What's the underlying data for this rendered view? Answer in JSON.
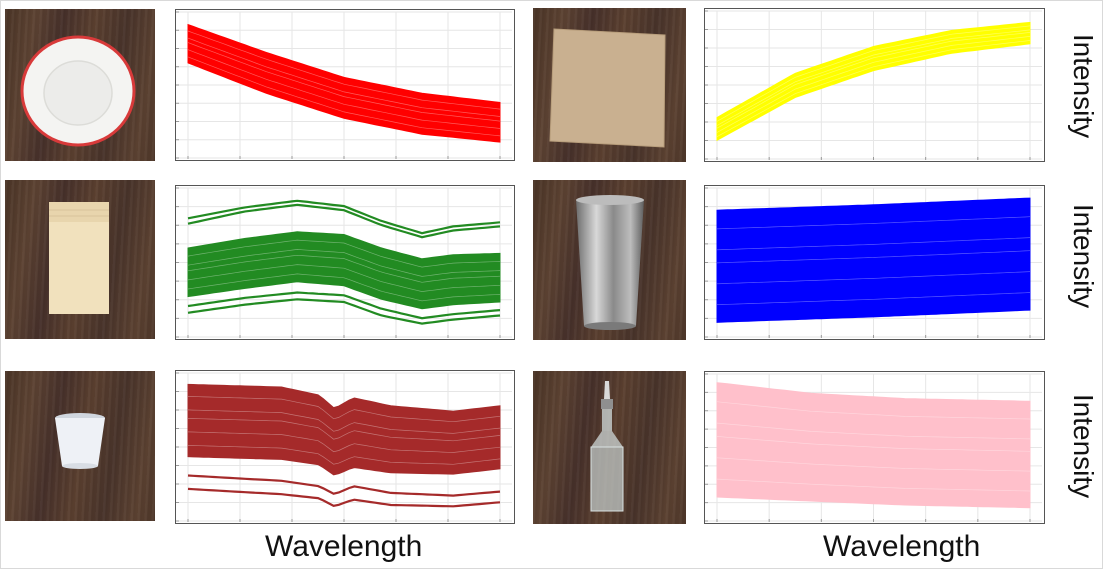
{
  "xlabels": {
    "left": "Wavelength",
    "right": "Wavelength"
  },
  "ylabels": {
    "row1": "Intensity",
    "row2": "Intensity",
    "row3": "Intensity"
  },
  "photos": [
    {
      "object": "white ceramic bowl with red rim"
    },
    {
      "object": "cardboard square"
    },
    {
      "object": "cream folded plastic bag"
    },
    {
      "object": "stainless steel tumbler"
    },
    {
      "object": "white paper cup"
    },
    {
      "object": "glass oil bottle with pourer"
    }
  ],
  "chart_data": [
    {
      "type": "line",
      "color": "#ff0000",
      "object": "bowl",
      "shape": "decreasing",
      "band": {
        "x": [
          0.0,
          0.25,
          0.5,
          0.75,
          1.0
        ],
        "top": [
          0.95,
          0.74,
          0.55,
          0.43,
          0.36
        ],
        "bottom": [
          0.66,
          0.43,
          0.24,
          0.12,
          0.06
        ]
      },
      "outliers": []
    },
    {
      "type": "line",
      "color": "#ffff00",
      "object": "cardboard",
      "shape": "increasing",
      "band": {
        "x": [
          0.0,
          0.25,
          0.5,
          0.75,
          1.0
        ],
        "top": [
          0.25,
          0.58,
          0.78,
          0.9,
          0.96
        ],
        "bottom": [
          0.08,
          0.4,
          0.6,
          0.73,
          0.8
        ]
      },
      "outliers": []
    },
    {
      "type": "line",
      "color": "#228b22",
      "object": "plastic bag",
      "shape": "plateau with dip",
      "band": {
        "x": [
          0.0,
          0.18,
          0.35,
          0.5,
          0.62,
          0.75,
          0.85,
          1.0
        ],
        "top": [
          0.6,
          0.67,
          0.72,
          0.7,
          0.6,
          0.52,
          0.55,
          0.56
        ],
        "bottom": [
          0.24,
          0.3,
          0.35,
          0.32,
          0.22,
          0.15,
          0.18,
          0.2
        ]
      },
      "outliers": [
        {
          "x": [
            0.0,
            0.18,
            0.35,
            0.5,
            0.62,
            0.75,
            0.85,
            1.0
          ],
          "y": [
            0.82,
            0.9,
            0.95,
            0.91,
            0.8,
            0.71,
            0.76,
            0.79
          ]
        },
        {
          "x": [
            0.0,
            0.18,
            0.35,
            0.5,
            0.62,
            0.75,
            0.85,
            1.0
          ],
          "y": [
            0.78,
            0.87,
            0.92,
            0.88,
            0.77,
            0.68,
            0.73,
            0.76
          ]
        },
        {
          "x": [
            0.0,
            0.18,
            0.35,
            0.5,
            0.62,
            0.75,
            0.85,
            1.0
          ],
          "y": [
            0.12,
            0.18,
            0.22,
            0.2,
            0.1,
            0.04,
            0.07,
            0.1
          ]
        },
        {
          "x": [
            0.0,
            0.18,
            0.35,
            0.5,
            0.62,
            0.75,
            0.85,
            1.0
          ],
          "y": [
            0.17,
            0.23,
            0.27,
            0.25,
            0.15,
            0.08,
            0.11,
            0.14
          ]
        }
      ]
    },
    {
      "type": "line",
      "color": "#0000ff",
      "object": "steel tumbler",
      "shape": "rising slightly",
      "band": {
        "x": [
          0.0,
          0.5,
          1.0
        ],
        "top": [
          0.88,
          0.92,
          0.97
        ],
        "bottom": [
          0.05,
          0.09,
          0.14
        ]
      },
      "outliers": []
    },
    {
      "type": "line",
      "color": "#a52a2a",
      "object": "paper cup",
      "shape": "flat with notch",
      "band": {
        "x": [
          0.0,
          0.3,
          0.42,
          0.47,
          0.53,
          0.65,
          0.85,
          1.0
        ],
        "top": [
          0.96,
          0.94,
          0.88,
          0.78,
          0.86,
          0.8,
          0.76,
          0.8
        ],
        "bottom": [
          0.42,
          0.4,
          0.36,
          0.28,
          0.34,
          0.3,
          0.29,
          0.33
        ]
      },
      "outliers": [
        {
          "x": [
            0.0,
            0.3,
            0.42,
            0.47,
            0.53,
            0.65,
            0.85,
            1.0
          ],
          "y": [
            0.28,
            0.24,
            0.2,
            0.14,
            0.2,
            0.15,
            0.13,
            0.16
          ]
        },
        {
          "x": [
            0.0,
            0.3,
            0.42,
            0.47,
            0.53,
            0.65,
            0.85,
            1.0
          ],
          "y": [
            0.18,
            0.14,
            0.11,
            0.05,
            0.1,
            0.06,
            0.05,
            0.08
          ]
        }
      ]
    },
    {
      "type": "line",
      "color": "#ffc0cb",
      "object": "glass bottle",
      "shape": "decreasing gently",
      "band": {
        "x": [
          0.0,
          0.3,
          0.6,
          1.0
        ],
        "top": [
          0.98,
          0.9,
          0.86,
          0.84
        ],
        "bottom": [
          0.12,
          0.09,
          0.06,
          0.04
        ]
      },
      "outliers": []
    }
  ]
}
